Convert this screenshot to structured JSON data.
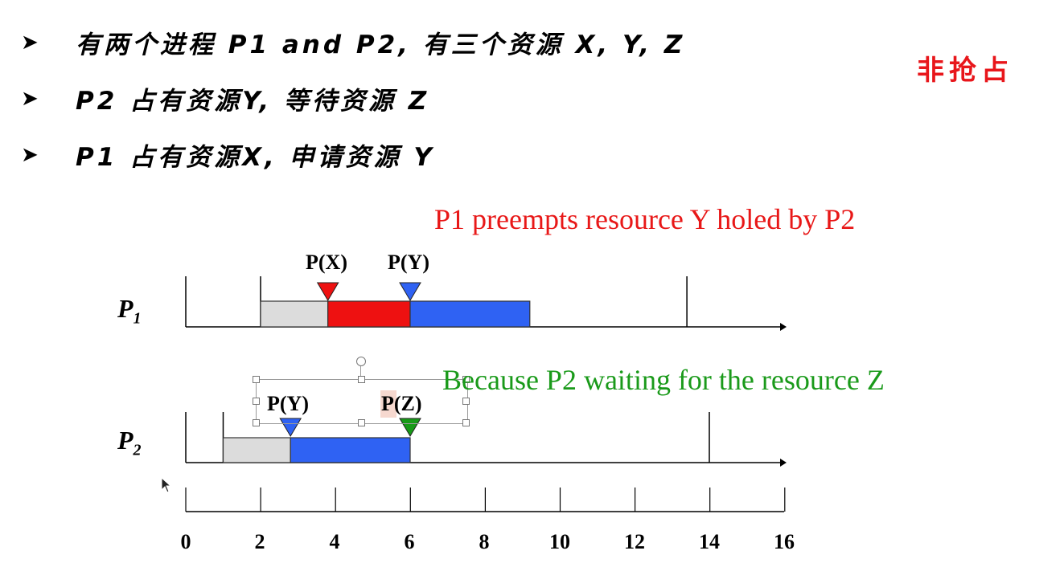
{
  "bullets": [
    {
      "icon": "arrow-bullet-icon",
      "text": "有两个进程 P1 and P2, 有三个资源 X, Y, Z"
    },
    {
      "icon": "arrow-bullet-icon",
      "text": "P2 占有资源Y, 等待资源 Z"
    },
    {
      "icon": "arrow-bullet-icon",
      "text": "P1 占有资源X, 申请资源 Y"
    }
  ],
  "corner_note": "非抢占",
  "captions": {
    "preempt": "P1 preempts resource Y holed by P2",
    "reason": "Because P2 waiting for the resource Z"
  },
  "colors": {
    "red": "#ee1111",
    "blue": "#2f62f3",
    "green": "#179a17",
    "idle": "#dcdcdc"
  },
  "timeline": {
    "ticks": [
      "0",
      "2",
      "4",
      "6",
      "8",
      "10",
      "12",
      "14",
      "16"
    ],
    "processes": [
      {
        "name": "P",
        "sub": "1",
        "segments": [
          {
            "start": 2,
            "end": 3.8,
            "color": "idle"
          },
          {
            "start": 3.8,
            "end": 6,
            "color": "red"
          },
          {
            "start": 6,
            "end": 9.2,
            "color": "blue"
          }
        ],
        "markers": [
          {
            "label": "P(X)",
            "at": 3.8,
            "color": "red"
          },
          {
            "label": "P(Y)",
            "at": 6,
            "color": "blue"
          }
        ],
        "deadline": 13.4
      },
      {
        "name": "P",
        "sub": "2",
        "segments": [
          {
            "start": 1,
            "end": 2.8,
            "color": "idle"
          },
          {
            "start": 2.8,
            "end": 6,
            "color": "blue"
          }
        ],
        "markers": [
          {
            "label": "P(Y)",
            "at": 2.8,
            "color": "blue"
          },
          {
            "label": "P(Z)",
            "at": 6,
            "color": "green"
          }
        ],
        "deadline": 14
      }
    ]
  }
}
